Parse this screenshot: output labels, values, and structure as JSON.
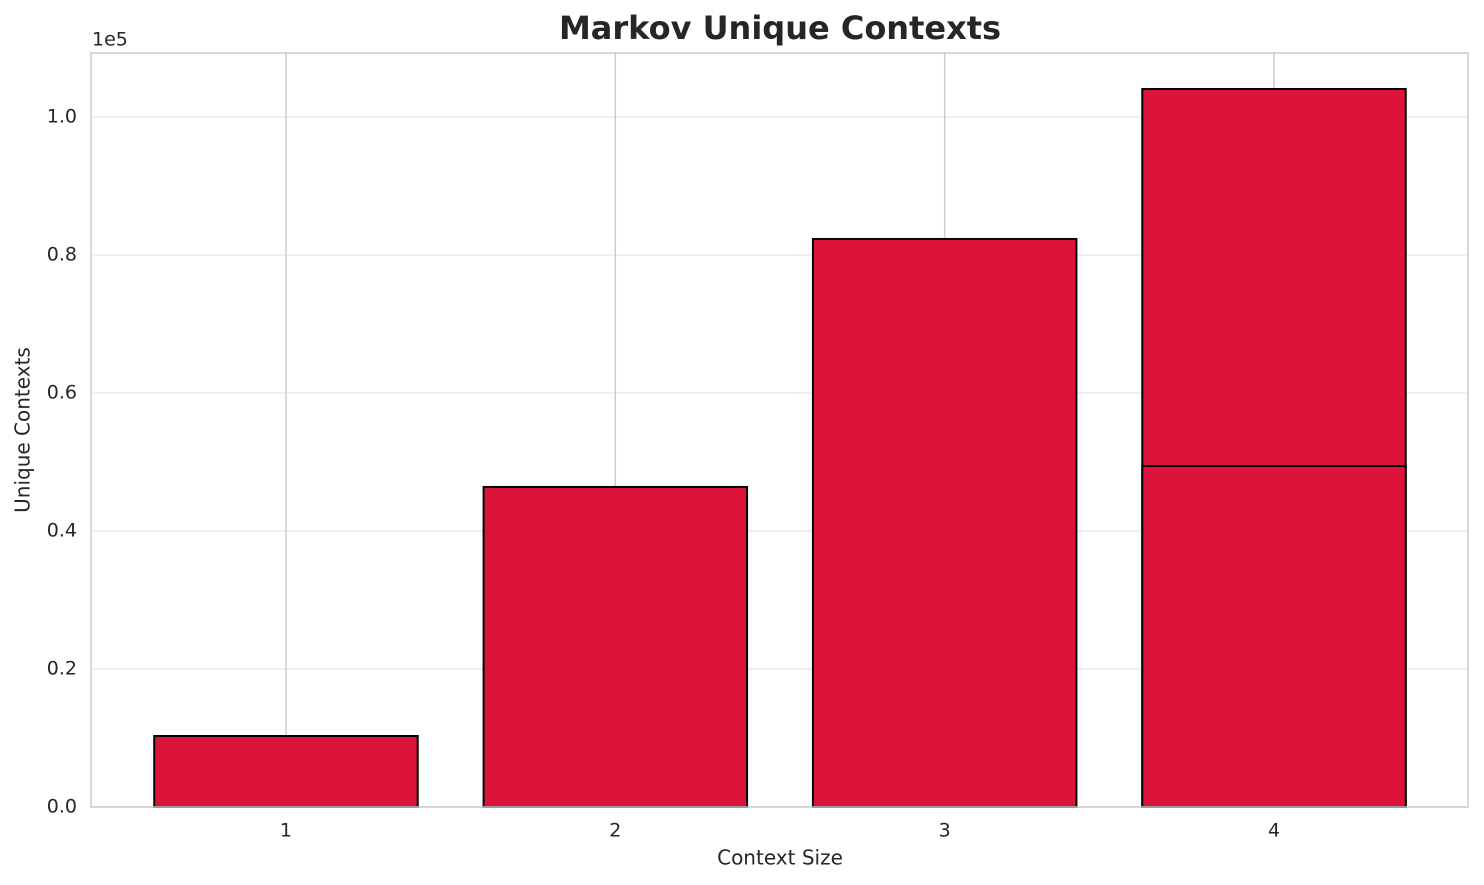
{
  "chart_data": {
    "type": "bar",
    "title": "Markov Unique Contexts",
    "x_label": "Context Size",
    "y_label": "Unique Contexts",
    "y_offset_label": "1e5",
    "x": [
      1,
      2,
      3,
      4,
      4
    ],
    "values": [
      10290,
      46380,
      82320,
      104060,
      49420
    ],
    "color": "#dc143c",
    "edgecolor": "#000000",
    "bar_width": 0.8,
    "xlim": [
      0.408,
      4.589
    ],
    "xticks": [
      1,
      2,
      3,
      4
    ],
    "ylim": [
      0,
      109275
    ],
    "yticks": [
      {
        "value": 0,
        "label": "0.0"
      },
      {
        "value": 20000,
        "label": "0.2"
      },
      {
        "value": 40000,
        "label": "0.4"
      },
      {
        "value": 60000,
        "label": "0.6"
      },
      {
        "value": 80000,
        "label": "0.8"
      },
      {
        "value": 100000,
        "label": "1.0"
      }
    ],
    "grid": true
  }
}
